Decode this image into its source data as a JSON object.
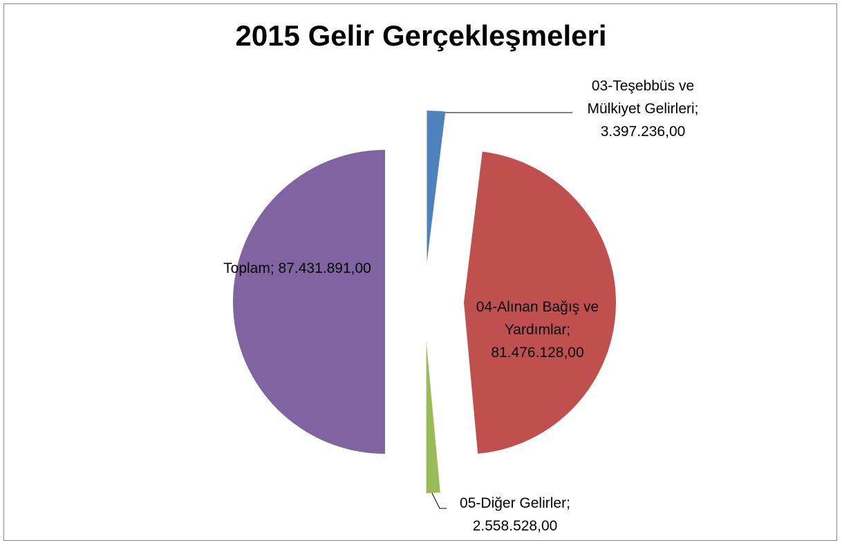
{
  "chart_data": {
    "type": "pie",
    "title": "2015 Gelir Gerçekleşmeleri",
    "categories": [
      "03-Teşebbüs ve Mülkiyet Gelirleri;",
      "04-Alınan Bağış ve Yardımlar;",
      "05-Diğer Gelirler;",
      "Toplam;"
    ],
    "values": [
      3397236,
      81476128,
      2558528,
      87431891
    ],
    "value_labels": [
      "3.397.236,00",
      "81.476.128,00",
      "2.558.528,00",
      "87.431.891,00"
    ],
    "colors": [
      "#4f81bd",
      "#c0504d",
      "#9bbb59",
      "#8064a2"
    ],
    "exploded": true
  }
}
